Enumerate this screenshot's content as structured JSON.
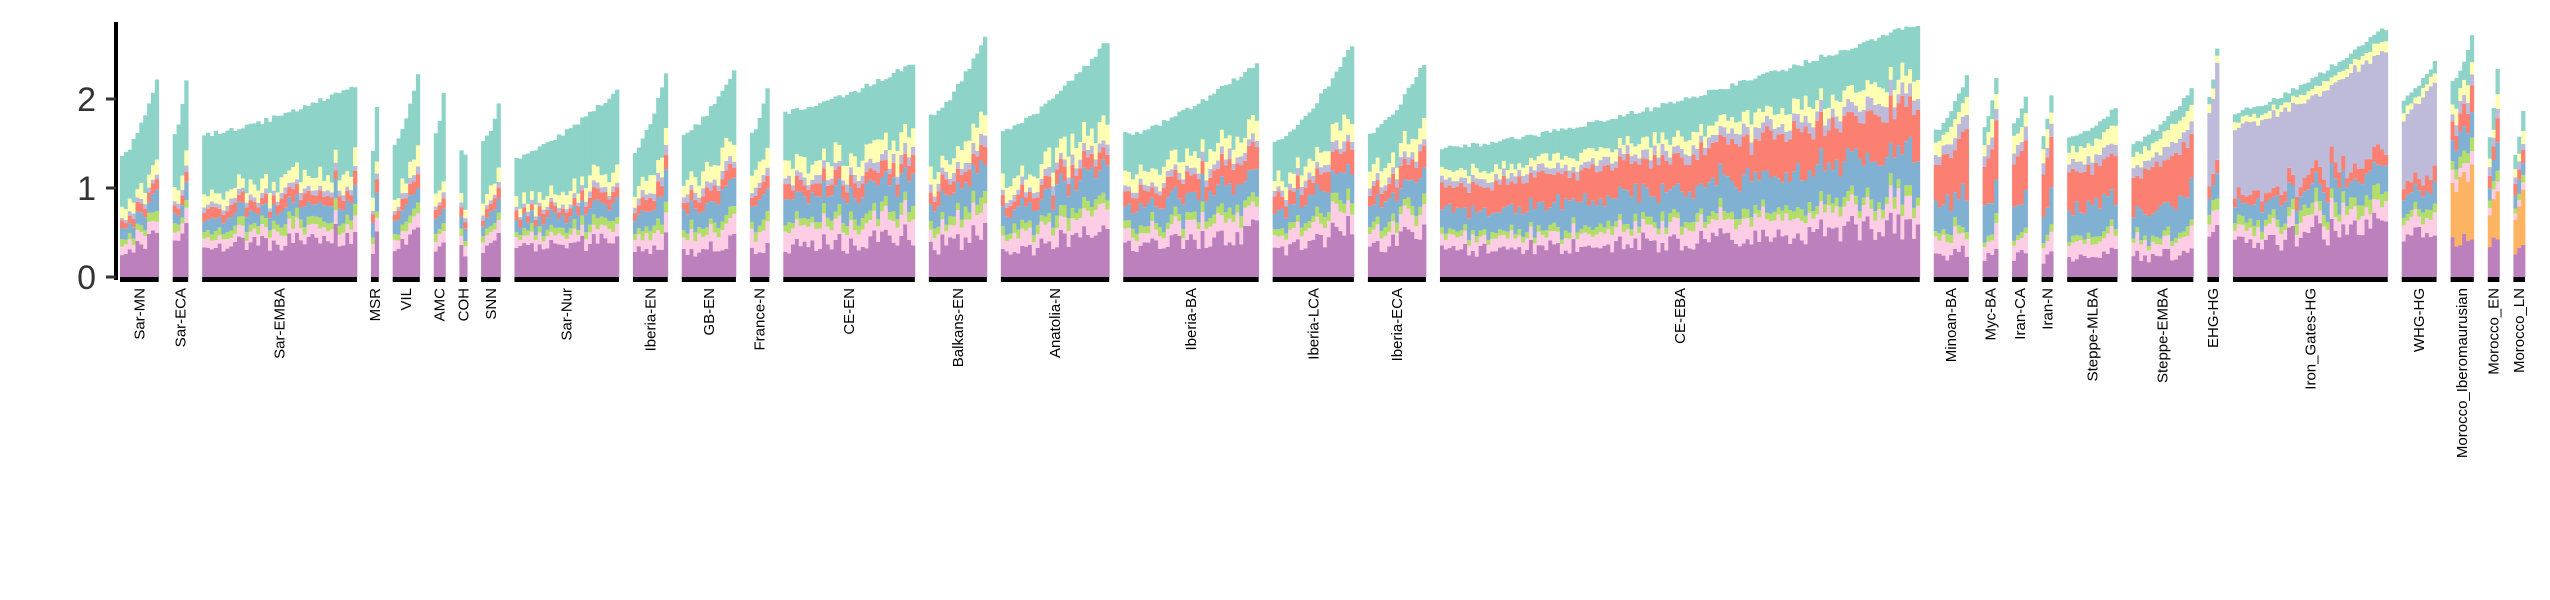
{
  "chart_data": {
    "type": "bar",
    "stacked": true,
    "title": "",
    "xlabel": "",
    "ylabel": "",
    "ylim": [
      0,
      2.85
    ],
    "yticks": [
      0,
      1,
      2
    ],
    "grid": false,
    "legend": "none",
    "component_colors": [
      "#BC80BD",
      "#FCCDE5",
      "#B3DE69",
      "#80B1D3",
      "#FB8072",
      "#BEBADA",
      "#FFFFB3",
      "#8DD3C7",
      "#FDB462"
    ],
    "groups": [
      {
        "name": "Sar-MN",
        "n": 10,
        "min_total": 1.35,
        "max_total": 2.2,
        "profile": "sar"
      },
      {
        "name": "Sar-ECA",
        "n": 4,
        "min_total": 1.6,
        "max_total": 2.2,
        "profile": "sar"
      },
      {
        "name": "Sar-EMBA",
        "n": 40,
        "min_total": 1.6,
        "max_total": 2.15,
        "profile": "sar"
      },
      {
        "name": "MSR",
        "n": 2,
        "min_total": 1.4,
        "max_total": 1.9,
        "profile": "sar"
      },
      {
        "name": "VIL",
        "n": 7,
        "min_total": 1.5,
        "max_total": 2.25,
        "profile": "sar"
      },
      {
        "name": "AMC",
        "n": 3,
        "min_total": 1.6,
        "max_total": 2.05,
        "profile": "sar"
      },
      {
        "name": "COH",
        "n": 2,
        "min_total": 1.4,
        "max_total": 1.4,
        "profile": "sar"
      },
      {
        "name": "SNN",
        "n": 5,
        "min_total": 1.5,
        "max_total": 1.95,
        "profile": "sar"
      },
      {
        "name": "Sar-Nur",
        "n": 27,
        "min_total": 1.35,
        "max_total": 2.1,
        "profile": "sar"
      },
      {
        "name": "Iberia-EN",
        "n": 9,
        "min_total": 1.4,
        "max_total": 2.3,
        "profile": "en"
      },
      {
        "name": "GB-EN",
        "n": 14,
        "min_total": 1.6,
        "max_total": 2.3,
        "profile": "en"
      },
      {
        "name": "France-N",
        "n": 5,
        "min_total": 1.6,
        "max_total": 2.15,
        "profile": "en"
      },
      {
        "name": "CE-EN",
        "n": 34,
        "min_total": 1.85,
        "max_total": 2.4,
        "profile": "en"
      },
      {
        "name": "Balkans-EN",
        "n": 15,
        "min_total": 1.8,
        "max_total": 2.7,
        "profile": "en"
      },
      {
        "name": "Anatolia-N",
        "n": 28,
        "min_total": 1.65,
        "max_total": 2.65,
        "profile": "en"
      },
      {
        "name": "Iberia-BA",
        "n": 35,
        "min_total": 1.6,
        "max_total": 2.4,
        "profile": "cl"
      },
      {
        "name": "Iberia-LCA",
        "n": 21,
        "min_total": 1.5,
        "max_total": 2.6,
        "profile": "cl"
      },
      {
        "name": "Iberia-ECA",
        "n": 15,
        "min_total": 1.6,
        "max_total": 2.4,
        "profile": "cl"
      },
      {
        "name": "CE-EBA",
        "n": 124,
        "min_total": 1.45,
        "max_total": 2.85,
        "profile": "eba"
      },
      {
        "name": "Minoan-BA",
        "n": 9,
        "min_total": 1.65,
        "max_total": 2.25,
        "profile": "st"
      },
      {
        "name": "Myc-BA",
        "n": 4,
        "min_total": 1.7,
        "max_total": 2.25,
        "profile": "st"
      },
      {
        "name": "Iran-CA",
        "n": 4,
        "min_total": 1.7,
        "max_total": 2.0,
        "profile": "st"
      },
      {
        "name": "Iran-N",
        "n": 3,
        "min_total": 1.6,
        "max_total": 2.05,
        "profile": "st"
      },
      {
        "name": "Steppe-MLBA",
        "n": 13,
        "min_total": 1.55,
        "max_total": 1.9,
        "profile": "st"
      },
      {
        "name": "Steppe-EMBA",
        "n": 16,
        "min_total": 1.5,
        "max_total": 2.1,
        "profile": "st"
      },
      {
        "name": "EHG-HG",
        "n": 3,
        "min_total": 2.0,
        "max_total": 2.55,
        "profile": "hg"
      },
      {
        "name": "Iron_Gates-HG",
        "n": 40,
        "min_total": 1.85,
        "max_total": 2.8,
        "profile": "hg"
      },
      {
        "name": "WHG-HG",
        "n": 9,
        "min_total": 2.0,
        "max_total": 2.4,
        "profile": "hg"
      },
      {
        "name": "Morocco_Iberomaurusian",
        "n": 6,
        "min_total": 2.2,
        "max_total": 2.7,
        "profile": "mo"
      },
      {
        "name": "Morocco_EN",
        "n": 3,
        "min_total": 1.6,
        "max_total": 2.35,
        "profile": "mo"
      },
      {
        "name": "Morocco_LN",
        "n": 3,
        "min_total": 1.4,
        "max_total": 1.85,
        "profile": "mo"
      }
    ]
  }
}
